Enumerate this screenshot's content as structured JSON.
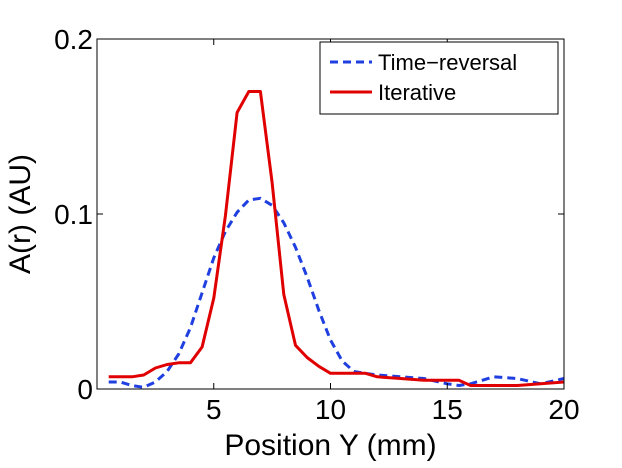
{
  "chart_data": {
    "type": "line",
    "title": "",
    "xlabel": "Position Y (mm)",
    "ylabel": "A(r) (AU)",
    "xlim": [
      0,
      20
    ],
    "ylim": [
      0,
      0.2
    ],
    "xticks": [
      5,
      10,
      15,
      20
    ],
    "xtick_labels": [
      "5",
      "10",
      "15",
      "20"
    ],
    "yticks": [
      0,
      0.1,
      0.2
    ],
    "ytick_labels": [
      "0",
      "0.1",
      "0.2"
    ],
    "grid": false,
    "legend_position": "top-right",
    "series": [
      {
        "name": "Time−reversal",
        "color": "#1f3fe0",
        "style": "dashed",
        "x": [
          0.5,
          1.0,
          1.5,
          2.0,
          2.5,
          3.0,
          3.5,
          4.0,
          4.5,
          5.0,
          5.5,
          6.0,
          6.5,
          7.0,
          7.5,
          8.0,
          8.5,
          9.0,
          9.5,
          10.0,
          10.5,
          11.0,
          11.5,
          12.0,
          13.0,
          14.0,
          15.0,
          15.5,
          16.0,
          17.0,
          18.0,
          19.0,
          20.0
        ],
        "y": [
          0.004,
          0.004,
          0.002,
          0.001,
          0.004,
          0.01,
          0.02,
          0.035,
          0.055,
          0.075,
          0.09,
          0.101,
          0.108,
          0.109,
          0.105,
          0.095,
          0.081,
          0.064,
          0.045,
          0.028,
          0.016,
          0.01,
          0.009,
          0.008,
          0.007,
          0.006,
          0.003,
          0.002,
          0.003,
          0.007,
          0.006,
          0.003,
          0.006
        ]
      },
      {
        "name": "Iterative",
        "color": "#e00000",
        "style": "solid",
        "x": [
          0.5,
          1.0,
          1.5,
          2.0,
          2.5,
          3.0,
          3.5,
          4.0,
          4.5,
          5.0,
          5.5,
          6.0,
          6.5,
          7.0,
          7.5,
          8.0,
          8.5,
          9.0,
          9.5,
          10.0,
          10.5,
          11.0,
          11.5,
          12.0,
          13.0,
          14.0,
          15.0,
          15.5,
          16.0,
          17.0,
          18.0,
          19.0,
          20.0
        ],
        "y": [
          0.007,
          0.007,
          0.007,
          0.008,
          0.012,
          0.014,
          0.015,
          0.015,
          0.024,
          0.052,
          0.099,
          0.158,
          0.17,
          0.17,
          0.118,
          0.054,
          0.025,
          0.018,
          0.013,
          0.009,
          0.009,
          0.009,
          0.009,
          0.007,
          0.006,
          0.005,
          0.005,
          0.005,
          0.002,
          0.002,
          0.002,
          0.003,
          0.004
        ]
      }
    ]
  }
}
